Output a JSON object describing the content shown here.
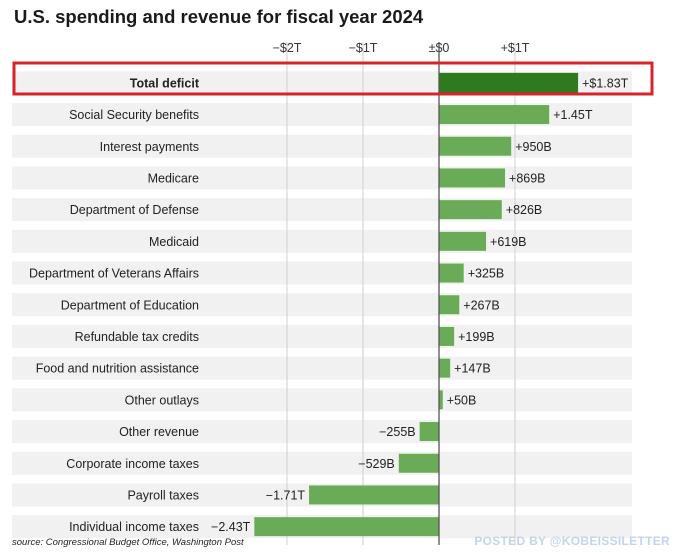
{
  "title": "U.S. spending and revenue for fiscal year 2024",
  "source": "source: Congressional Budget Office, Washington Post",
  "watermark": "POSTED BY @KOBEISSILETTER",
  "colors": {
    "bar": "#6aab58",
    "highlight_bar": "#2f7a1f",
    "row_band": "#f1f1f1",
    "gridline": "#cfcfcf",
    "zero_line": "#555555",
    "highlight_box": "#d8232a",
    "text": "#222222"
  },
  "chart_data": {
    "type": "bar",
    "orientation": "horizontal",
    "title": "U.S. spending and revenue for fiscal year 2024",
    "unit": "USD billions",
    "xlim": [
      -2600,
      2600
    ],
    "ticks": [
      {
        "value": -2000,
        "label": "−$2T"
      },
      {
        "value": -1000,
        "label": "−$1T"
      },
      {
        "value": 0,
        "label": "±$0"
      },
      {
        "value": 1000,
        "label": "+$1T"
      }
    ],
    "grid": true,
    "highlight_category": "Total deficit",
    "categories": [
      "Total deficit",
      "Social Security benefits",
      "Interest payments",
      "Medicare",
      "Department of Defense",
      "Medicaid",
      "Department of Veterans Affairs",
      "Department of Education",
      "Refundable tax credits",
      "Food and nutrition assistance",
      "Other outlays",
      "Other revenue",
      "Corporate income taxes",
      "Payroll taxes",
      "Individual income taxes"
    ],
    "values": [
      1830,
      1450,
      950,
      869,
      826,
      619,
      325,
      267,
      199,
      147,
      50,
      -255,
      -529,
      -1710,
      -2430
    ],
    "value_labels": [
      "+$1.83T",
      "+1.45T",
      "+950B",
      "+869B",
      "+826B",
      "+619B",
      "+325B",
      "+267B",
      "+199B",
      "+147B",
      "+50B",
      "−255B",
      "−529B",
      "−1.71T",
      "−2.43T"
    ]
  }
}
